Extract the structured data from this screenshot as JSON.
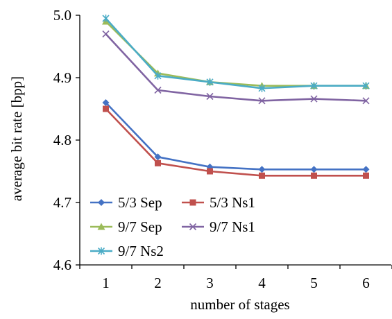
{
  "chart_data": {
    "type": "line",
    "title": "",
    "xlabel": "number of stages",
    "ylabel": "average bit rate [bpp]",
    "x": [
      1,
      2,
      3,
      4,
      5,
      6
    ],
    "x_ticks": [
      "1",
      "2",
      "3",
      "4",
      "5",
      "6"
    ],
    "ylim": [
      4.6,
      5.0
    ],
    "y_ticks": [
      "4.6",
      "4.7",
      "4.8",
      "4.9",
      "5.0"
    ],
    "grid": false,
    "legend_placement": "bottom-left",
    "series": [
      {
        "name": "5/3 Sep",
        "color": "#4472c4",
        "marker": "diamond",
        "values": [
          4.86,
          4.773,
          4.757,
          4.753,
          4.753,
          4.753
        ]
      },
      {
        "name": "5/3 Ns1",
        "color": "#c0504d",
        "marker": "square",
        "values": [
          4.85,
          4.763,
          4.75,
          4.743,
          4.743,
          4.743
        ]
      },
      {
        "name": "9/7 Sep",
        "color": "#9bbb59",
        "marker": "triangle",
        "values": [
          4.99,
          4.907,
          4.893,
          4.887,
          4.887,
          4.887
        ]
      },
      {
        "name": "9/7 Ns1",
        "color": "#8064a2",
        "marker": "x",
        "values": [
          4.97,
          4.88,
          4.87,
          4.863,
          4.866,
          4.863
        ]
      },
      {
        "name": "9/7 Ns2",
        "color": "#4bacc6",
        "marker": "star",
        "values": [
          4.995,
          4.903,
          4.893,
          4.883,
          4.887,
          4.887
        ]
      }
    ]
  }
}
